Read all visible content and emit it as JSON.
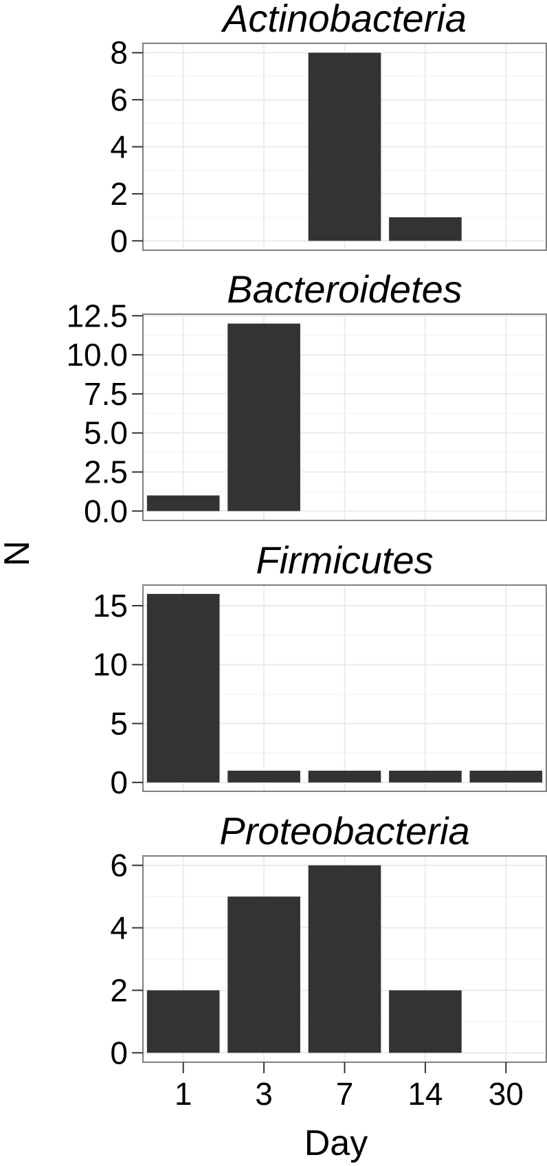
{
  "chart_data": {
    "type": "bar",
    "layout": "faceted",
    "xlabel": "Day",
    "ylabel": "N",
    "categories": [
      "1",
      "3",
      "7",
      "14",
      "30"
    ],
    "colors": {
      "bar": "#333333",
      "panel_border": "#7f7f7f",
      "grid": "#ebebeb",
      "background": "#ffffff"
    },
    "grid": true,
    "facets": [
      {
        "title": "Actinobacteria",
        "values": [
          0,
          0,
          8,
          1,
          0
        ],
        "ylim": [
          -0.4,
          8.4
        ],
        "yticks": [
          0,
          2,
          4,
          6,
          8
        ],
        "ytick_labels": [
          "0",
          "2",
          "4",
          "6",
          "8"
        ]
      },
      {
        "title": "Bacteroidetes",
        "values": [
          1,
          12,
          0,
          0,
          0
        ],
        "ylim": [
          -0.6,
          12.6
        ],
        "yticks": [
          0,
          2.5,
          5,
          7.5,
          10,
          12.5
        ],
        "ytick_labels": [
          "0.0",
          "2.5",
          "5.0",
          "7.5",
          "10.0",
          "12.5"
        ]
      },
      {
        "title": "Firmicutes",
        "values": [
          16,
          1,
          1,
          1,
          1
        ],
        "ylim": [
          -0.75,
          16.75
        ],
        "yticks": [
          0,
          5,
          10,
          15
        ],
        "ytick_labels": [
          "0",
          "5",
          "10",
          "15"
        ]
      },
      {
        "title": "Proteobacteria",
        "values": [
          2,
          5,
          6,
          2,
          0
        ],
        "ylim": [
          -0.3,
          6.3
        ],
        "yticks": [
          0,
          2,
          4,
          6
        ],
        "ytick_labels": [
          "0",
          "2",
          "4",
          "6"
        ]
      }
    ]
  }
}
